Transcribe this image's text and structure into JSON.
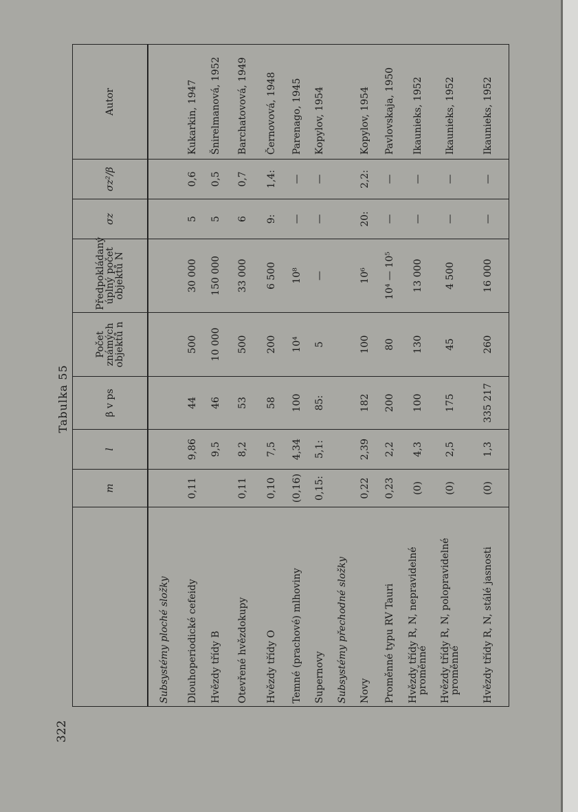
{
  "page_number": "322",
  "title": "Tabulka 55",
  "columns": [
    "",
    "m",
    "l",
    "β v ps",
    "Počet známých objektů n",
    "Předpokládaný úplný počet objektů N",
    "σz",
    "σz²/β",
    "Autor"
  ],
  "rows": [
    {
      "section": "Subsystémy ploché složky"
    },
    {
      "cells": [
        "Dlouhoperiodické cefeidy",
        "0,11",
        "9,86",
        "44",
        "500",
        "30 000",
        "5",
        "0,6",
        "Kukarkin, 1947"
      ]
    },
    {
      "cells": [
        "Hvězdy třídy B",
        "",
        "9,5",
        "46",
        "10 000",
        "150 000",
        "5",
        "0,5",
        "Šnirelmanová, 1952"
      ]
    },
    {
      "cells": [
        "Otevřené hvězdokupy",
        "0,11",
        "8,2",
        "53",
        "500",
        "33 000",
        "6",
        "0,7",
        "Barchatovová, 1949"
      ]
    },
    {
      "cells": [
        "Hvězdy třídy O",
        "0,10",
        "7,5",
        "58",
        "200",
        "6 500",
        "9:",
        "1,4:",
        "Černovová, 1948"
      ]
    },
    {
      "cells": [
        "Temné (prachové) mlhoviny",
        "(0,16)",
        "4,34",
        "100",
        "10⁴",
        "10⁸",
        "—",
        "—",
        "Parenago, 1945"
      ]
    },
    {
      "cells": [
        "Supernovy",
        "0,15:",
        "5,1:",
        "85:",
        "5",
        "—",
        "—",
        "—",
        "Kopylov, 1954"
      ]
    },
    {
      "section": "Subsystémy přechodné složky"
    },
    {
      "cells": [
        "Novy",
        "0,22",
        "2,39",
        "182",
        "100",
        "10⁶",
        "20:",
        "2,2:",
        "Kopylov, 1954"
      ]
    },
    {
      "cells": [
        "Proměnné typu RV Tauri",
        "0,23",
        "2,2",
        "200",
        "80",
        "10⁴ — 10⁵",
        "—",
        "—",
        "Pavlovskaja, 1950"
      ]
    },
    {
      "cells": [
        "Hvězdy třídy R, N, nepravidelné proměnné",
        "(0)",
        "4,3",
        "100",
        "130",
        "13 000",
        "—",
        "—",
        "Ikaunieks, 1952"
      ]
    },
    {
      "cells": [
        "Hvězdy třídy R, N, polopravidelné proměnné",
        "(0)",
        "2,5",
        "175",
        "45",
        "4 500",
        "—",
        "—",
        "Ikaunieks, 1952"
      ]
    },
    {
      "cells": [
        "Hvězdy třídy R, N, stálé jasnosti",
        "(0)",
        "1,3",
        "335 217",
        "260",
        "16 000",
        "—",
        "—",
        "Ikaunieks, 1952"
      ]
    }
  ]
}
